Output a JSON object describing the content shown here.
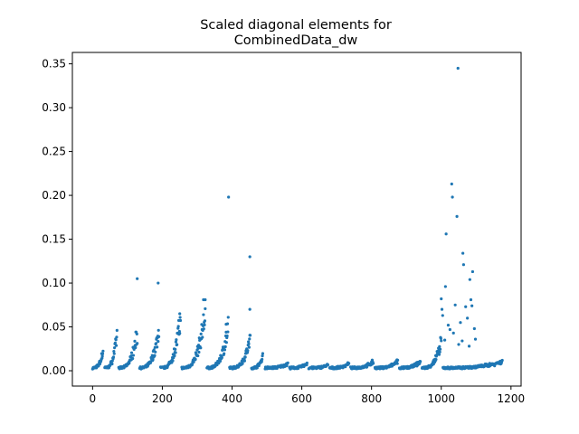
{
  "chart_data": {
    "type": "scatter",
    "title_lines": [
      "Scaled diagonal elements for",
      "CombinedData_dw"
    ],
    "xlabel": "",
    "ylabel": "",
    "xlim": [
      -58,
      1229
    ],
    "ylim": [
      -0.0175,
      0.363
    ],
    "x_ticks": [
      0,
      200,
      400,
      600,
      800,
      1000,
      1200
    ],
    "x_tick_labels": [
      "0",
      "200",
      "400",
      "600",
      "800",
      "1000",
      "1200"
    ],
    "y_ticks": [
      0.0,
      0.05,
      0.1,
      0.15,
      0.2,
      0.25,
      0.3,
      0.35
    ],
    "y_tick_labels": [
      "0.00",
      "0.05",
      "0.10",
      "0.15",
      "0.20",
      "0.25",
      "0.30",
      "0.35"
    ],
    "grid": false,
    "legend": "none",
    "marker_color": "#1f77b4",
    "clusters": [
      {
        "start": 0,
        "end": 30,
        "peak": 0.027
      },
      {
        "start": 35,
        "end": 70,
        "peak": 0.05
      },
      {
        "start": 75,
        "end": 128,
        "peak": 0.052
      },
      {
        "start": 135,
        "end": 190,
        "peak": 0.055
      },
      {
        "start": 195,
        "end": 252,
        "peak": 0.071
      },
      {
        "start": 256,
        "end": 323,
        "peak": 0.081
      },
      {
        "start": 328,
        "end": 389,
        "peak": 0.059
      },
      {
        "start": 393,
        "end": 452,
        "peak": 0.043
      },
      {
        "start": 456,
        "end": 488,
        "peak": 0.02
      },
      {
        "start": 495,
        "end": 560,
        "peak": 0.009
      },
      {
        "start": 565,
        "end": 615,
        "peak": 0.009
      },
      {
        "start": 620,
        "end": 675,
        "peak": 0.007
      },
      {
        "start": 680,
        "end": 735,
        "peak": 0.009
      },
      {
        "start": 740,
        "end": 805,
        "peak": 0.012
      },
      {
        "start": 810,
        "end": 875,
        "peak": 0.012
      },
      {
        "start": 880,
        "end": 940,
        "peak": 0.012
      },
      {
        "start": 945,
        "end": 1000,
        "peak": 0.04
      },
      {
        "start": 1005,
        "end": 1175,
        "peak": 0.012
      }
    ],
    "highlighted_points": [
      {
        "x": 128,
        "y": 0.105
      },
      {
        "x": 188,
        "y": 0.1
      },
      {
        "x": 390,
        "y": 0.198
      },
      {
        "x": 451,
        "y": 0.13
      },
      {
        "x": 451,
        "y": 0.07
      },
      {
        "x": 250,
        "y": 0.065
      },
      {
        "x": 318,
        "y": 0.081
      },
      {
        "x": 323,
        "y": 0.081
      },
      {
        "x": 383,
        "y": 0.053
      },
      {
        "x": 1000,
        "y": 0.082
      },
      {
        "x": 1002,
        "y": 0.07
      },
      {
        "x": 1004,
        "y": 0.063
      },
      {
        "x": 1012,
        "y": 0.096
      },
      {
        "x": 1014,
        "y": 0.156
      },
      {
        "x": 1030,
        "y": 0.213
      },
      {
        "x": 1032,
        "y": 0.198
      },
      {
        "x": 1045,
        "y": 0.176
      },
      {
        "x": 1048,
        "y": 0.345
      },
      {
        "x": 1062,
        "y": 0.134
      },
      {
        "x": 1064,
        "y": 0.121
      },
      {
        "x": 1090,
        "y": 0.113
      },
      {
        "x": 1082,
        "y": 0.104
      },
      {
        "x": 1085,
        "y": 0.081
      },
      {
        "x": 1040,
        "y": 0.075
      },
      {
        "x": 1070,
        "y": 0.073
      },
      {
        "x": 1020,
        "y": 0.052
      },
      {
        "x": 1025,
        "y": 0.047
      },
      {
        "x": 1035,
        "y": 0.043
      },
      {
        "x": 1055,
        "y": 0.055
      },
      {
        "x": 1075,
        "y": 0.06
      },
      {
        "x": 1088,
        "y": 0.074
      },
      {
        "x": 1010,
        "y": 0.035
      },
      {
        "x": 1050,
        "y": 0.03
      },
      {
        "x": 1060,
        "y": 0.034
      },
      {
        "x": 1080,
        "y": 0.028
      },
      {
        "x": 1095,
        "y": 0.048
      },
      {
        "x": 1098,
        "y": 0.036
      }
    ]
  }
}
